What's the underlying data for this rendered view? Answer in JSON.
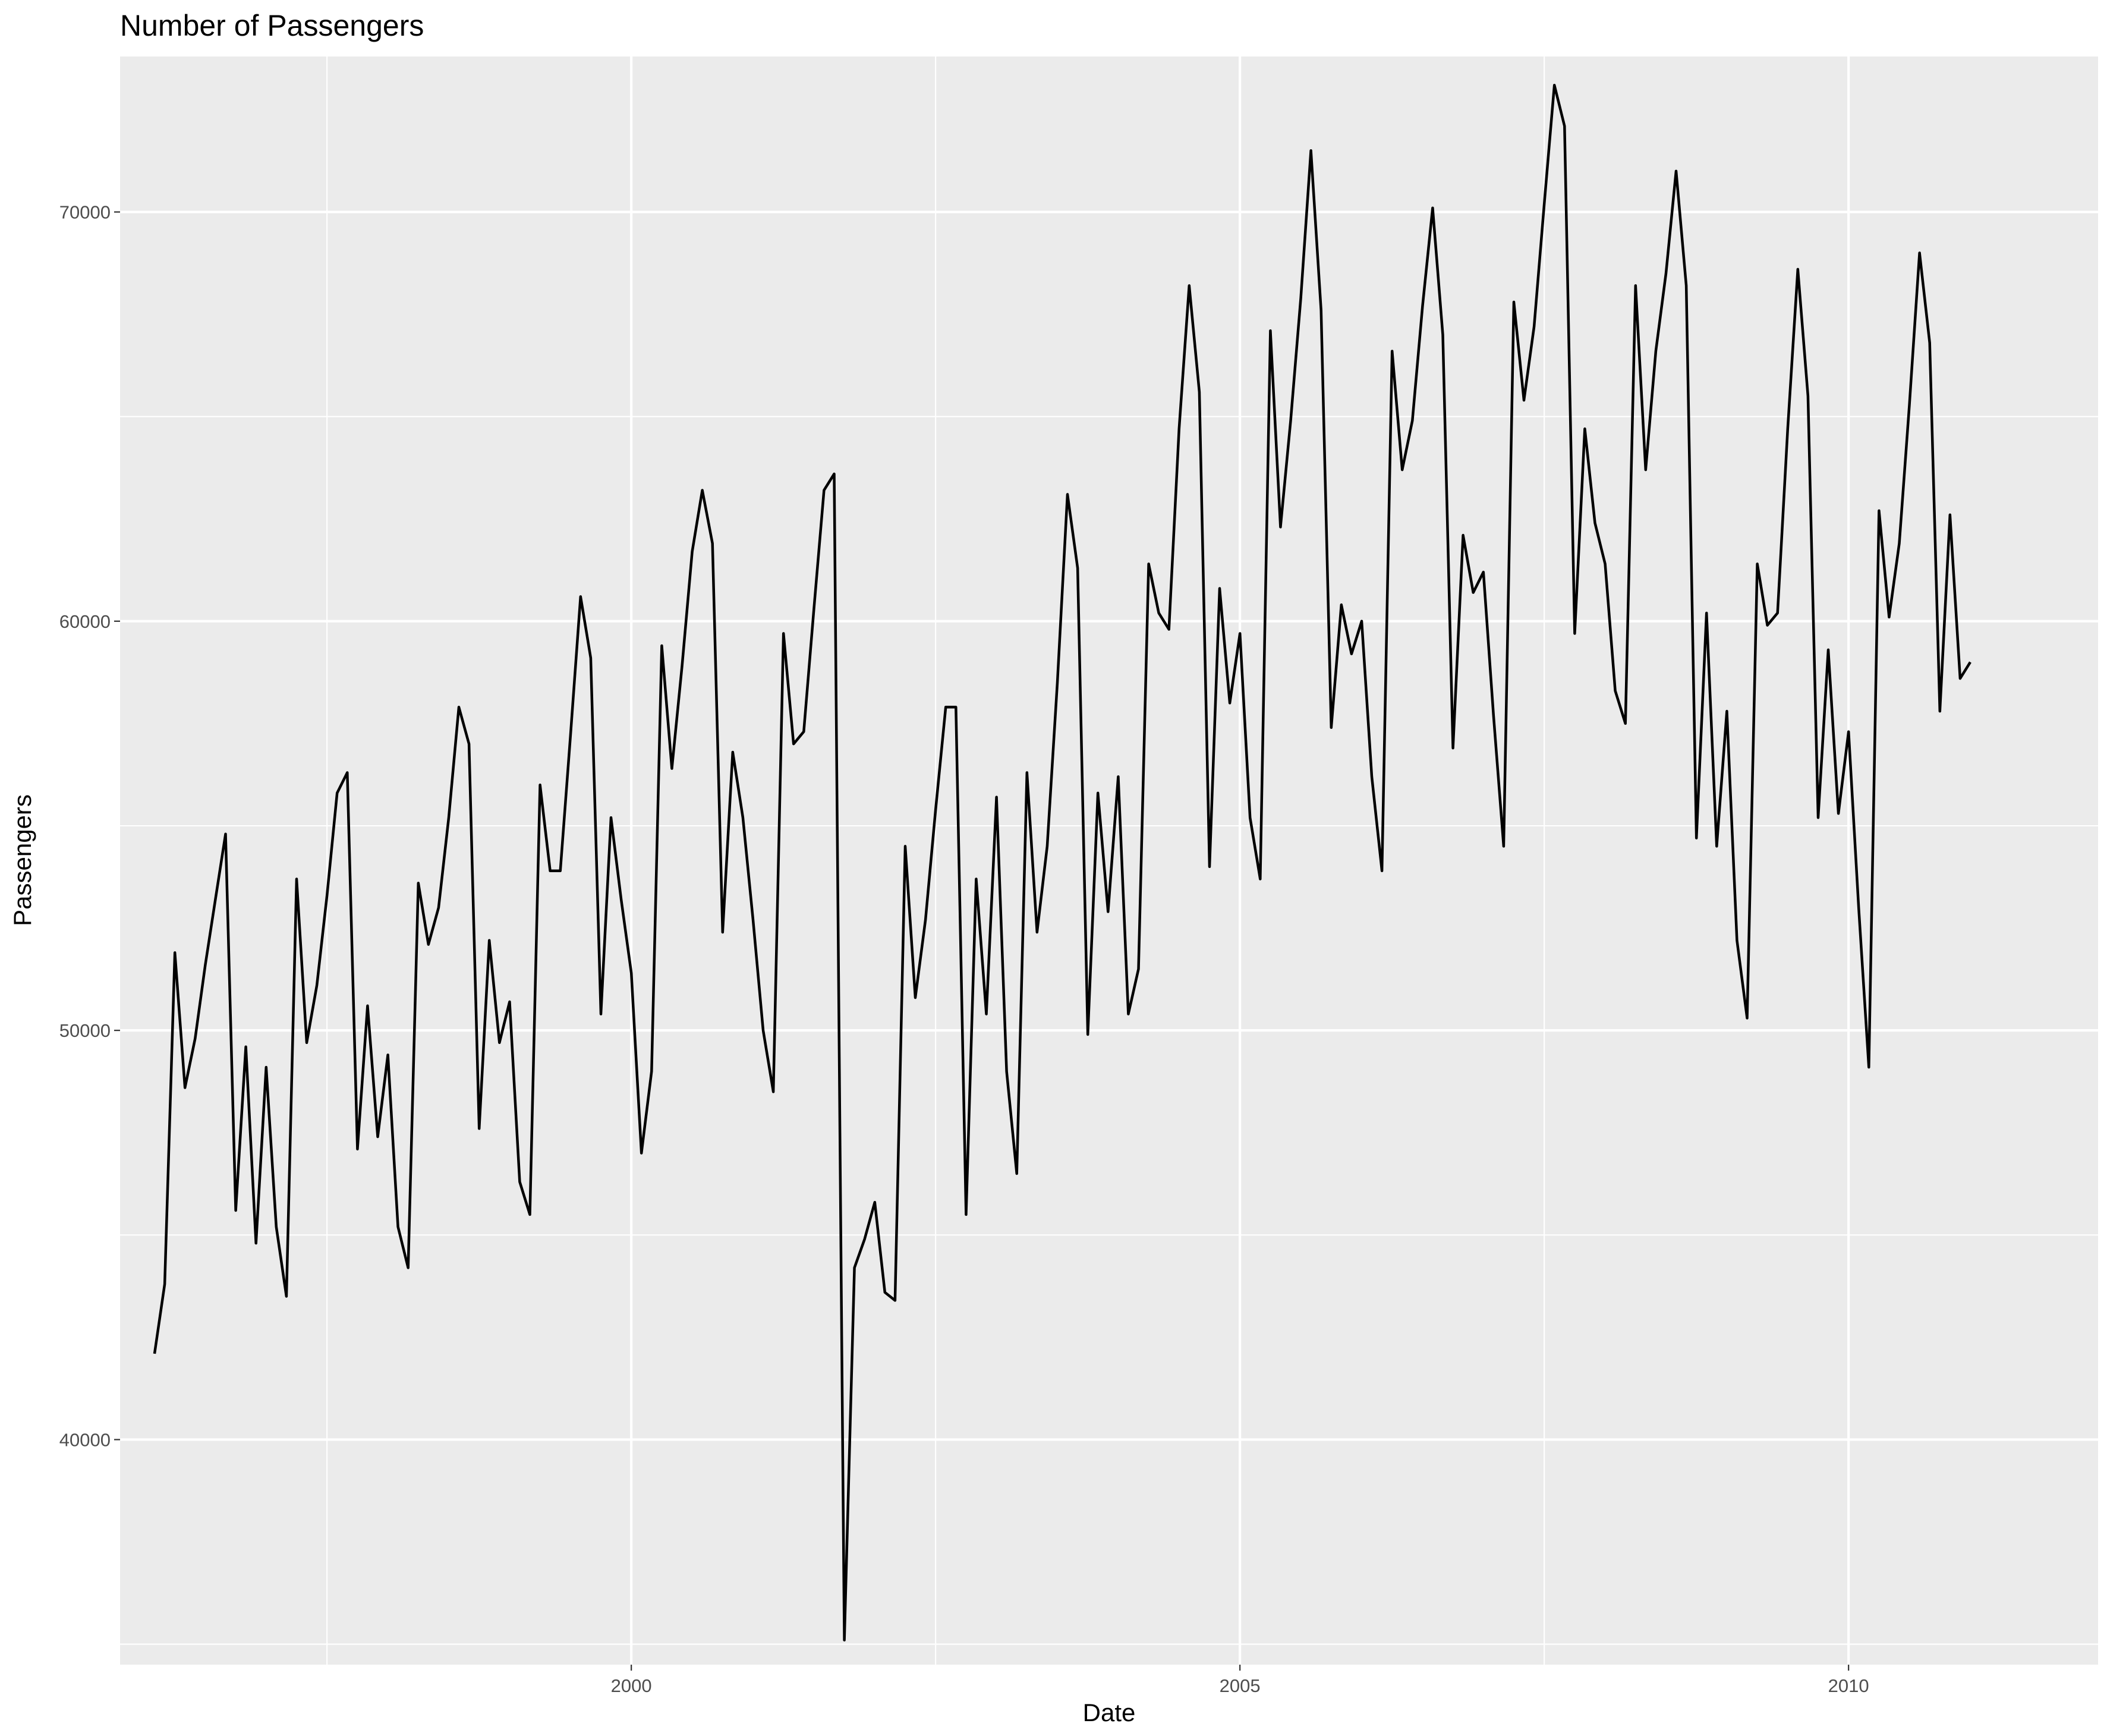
{
  "chart_data": {
    "type": "line",
    "title": "Number of Passengers",
    "xlabel": "Date",
    "ylabel": "Passengers",
    "xlim": [
      1995.8,
      2012.05
    ],
    "ylim": [
      34500,
      73800
    ],
    "x_ticks": [
      2000,
      2005,
      2010
    ],
    "x_minor_ticks": [
      1997.5,
      2002.5,
      2007.5
    ],
    "y_ticks": [
      40000,
      50000,
      60000,
      70000
    ],
    "y_minor_ticks": [
      35000,
      45000,
      55000,
      65000
    ],
    "grid": true,
    "legend": "none",
    "start_year": 1996,
    "start_month": 2,
    "values": [
      42100,
      43800,
      51900,
      48600,
      49800,
      51600,
      53200,
      54800,
      45600,
      49600,
      44800,
      49100,
      45200,
      43500,
      53700,
      49700,
      51100,
      53300,
      55800,
      56300,
      47100,
      50600,
      47400,
      49400,
      45200,
      44200,
      53600,
      52100,
      53000,
      55200,
      57900,
      57000,
      47600,
      52200,
      49700,
      50700,
      46300,
      45500,
      56000,
      53900,
      53900,
      57200,
      60600,
      59100,
      50400,
      55200,
      53200,
      51400,
      47000,
      49000,
      59400,
      56400,
      58900,
      61700,
      63200,
      61900,
      52400,
      56800,
      55200,
      52700,
      50000,
      48500,
      59700,
      57000,
      57300,
      60300,
      63200,
      63600,
      35100,
      44200,
      44900,
      45800,
      43600,
      43400,
      54500,
      50800,
      52700,
      55400,
      57900,
      57900,
      45500,
      53700,
      50400,
      55700,
      49000,
      46500,
      56300,
      52400,
      54500,
      58500,
      63100,
      61300,
      49900,
      55800,
      52900,
      56200,
      50400,
      51500,
      61400,
      60200,
      59800,
      64700,
      68200,
      65600,
      54000,
      60800,
      58000,
      59700,
      55200,
      53700,
      67100,
      62300,
      64900,
      67900,
      71500,
      67600,
      57400,
      60400,
      59200,
      60000,
      56200,
      53900,
      66600,
      63700,
      64900,
      67700,
      70100,
      67000,
      56900,
      62100,
      60700,
      61200,
      57700,
      54500,
      67800,
      65400,
      67200,
      70200,
      73100,
      72100,
      59700,
      64700,
      62400,
      61400,
      58300,
      57500,
      68200,
      63700,
      66600,
      68500,
      71000,
      68200,
      54700,
      60200,
      54500,
      57800,
      52200,
      50300,
      61400,
      59900,
      60200,
      64700,
      68600,
      65500,
      55200,
      59300,
      55300,
      57300,
      53000,
      49100,
      62700,
      60100,
      61900,
      65300,
      69000,
      66800,
      57800,
      62600,
      58600,
      59000
    ]
  }
}
